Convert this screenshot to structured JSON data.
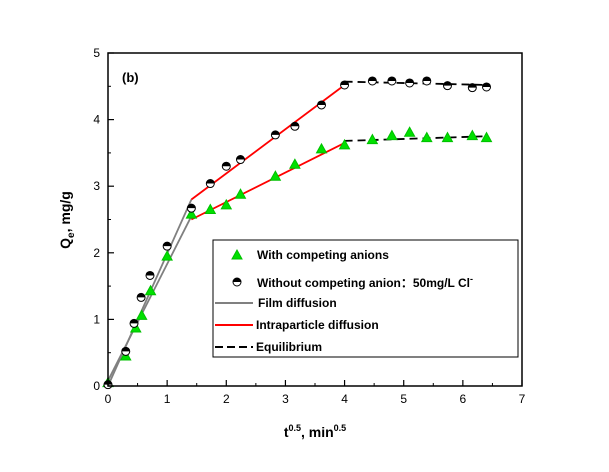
{
  "chart_data": {
    "type": "scatter",
    "panel_label": "(b)",
    "xlabel": {
      "base": "t",
      "sup": "0.5",
      "mid": ", min",
      "sup2": "0.5"
    },
    "ylabel": {
      "base": "Q",
      "sub": "e",
      "rest": ", mg/g"
    },
    "xlim": [
      0,
      7
    ],
    "ylim": [
      0,
      5
    ],
    "xticks": [
      "0",
      "1",
      "2",
      "3",
      "4",
      "5",
      "6",
      "7"
    ],
    "yticks": [
      "0",
      "1",
      "2",
      "3",
      "4",
      "5"
    ],
    "grid": false,
    "legend_placement": "bottom-right",
    "series": [
      {
        "name": "With competing anions",
        "marker": "triangle",
        "color": "#00e000",
        "x": [
          0,
          0.3,
          0.47,
          0.57,
          0.72,
          1.0,
          1.41,
          1.73,
          2.0,
          2.24,
          2.83,
          3.16,
          3.61,
          4.0,
          4.47,
          4.8,
          5.1,
          5.39,
          5.74,
          6.16,
          6.4
        ],
        "y": [
          0.05,
          0.45,
          0.87,
          1.06,
          1.43,
          1.95,
          2.58,
          2.65,
          2.72,
          2.88,
          3.15,
          3.33,
          3.56,
          3.62,
          3.7,
          3.76,
          3.81,
          3.73,
          3.73,
          3.76,
          3.73
        ]
      },
      {
        "name": "Without competing anion：50mg/L Cl",
        "name_sup": "-",
        "marker": "half-filled-circle",
        "color": "#000000",
        "x": [
          0,
          0.3,
          0.44,
          0.56,
          0.71,
          1.0,
          1.41,
          1.73,
          2.0,
          2.24,
          2.83,
          3.16,
          3.61,
          4.0,
          4.47,
          4.8,
          5.1,
          5.39,
          5.74,
          6.16,
          6.4
        ],
        "y": [
          0.02,
          0.52,
          0.94,
          1.33,
          1.66,
          2.1,
          2.67,
          3.04,
          3.3,
          3.4,
          3.77,
          3.9,
          4.22,
          4.52,
          4.58,
          4.58,
          4.55,
          4.58,
          4.51,
          4.48,
          4.49
        ]
      }
    ],
    "fit_lines": [
      {
        "name": "Film diffusion",
        "color": "#808080",
        "dash": false,
        "segments": [
          [
            [
              0,
              0.0
            ],
            [
              1.41,
              2.8
            ]
          ],
          [
            [
              0,
              0.08
            ],
            [
              1.41,
              2.55
            ]
          ]
        ]
      },
      {
        "name": "Intraparticle diffusion",
        "color": "#ff0000",
        "dash": false,
        "segments": [
          [
            [
              1.41,
              2.8
            ],
            [
              4.0,
              4.52
            ]
          ],
          [
            [
              1.41,
              2.5
            ],
            [
              4.0,
              3.65
            ]
          ]
        ]
      },
      {
        "name": "Equilibrium",
        "color": "#000000",
        "dash": true,
        "segments": [
          [
            [
              4.0,
              4.57
            ],
            [
              6.4,
              4.52
            ]
          ],
          [
            [
              4.0,
              3.68
            ],
            [
              6.4,
              3.75
            ]
          ]
        ]
      }
    ]
  }
}
